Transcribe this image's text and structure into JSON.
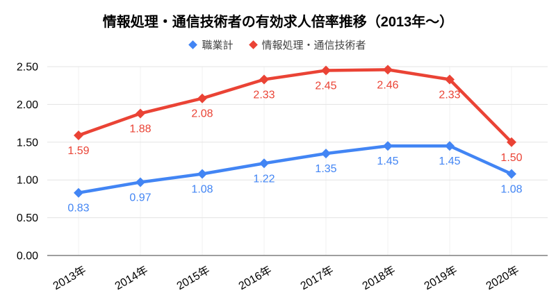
{
  "chart": {
    "title": "情報処理・通信技術者の有効求人倍率推移（2013年〜）",
    "background": "#ffffff",
    "grid_color": "#e3e3e3",
    "vgrid_color": "#f2f2f2",
    "baseline_color": "#9e9e9e",
    "axis_text_color": "#000000",
    "legend_text_color": "#424242"
  },
  "chart_data": {
    "type": "line",
    "title": "情報処理・通信技術者の有効求人倍率推移（2013年〜）",
    "categories": [
      "2013年",
      "2014年",
      "2015年",
      "2016年",
      "2017年",
      "2018年",
      "2019年",
      "2020年"
    ],
    "series": [
      {
        "name": "職業計",
        "color": "#4285f4",
        "values": [
          0.83,
          0.97,
          1.08,
          1.22,
          1.35,
          1.45,
          1.45,
          1.08
        ]
      },
      {
        "name": "情報処理・通信技術者",
        "color": "#ea4335",
        "values": [
          1.59,
          1.88,
          2.08,
          2.33,
          2.45,
          2.46,
          2.33,
          1.5
        ]
      }
    ],
    "xlabel": "",
    "ylabel": "",
    "ylim": [
      0,
      2.5
    ],
    "yticks": [
      0,
      0.5,
      1,
      1.5,
      2,
      2.5
    ],
    "ytick_labels": [
      "0.00",
      "0.50",
      "1.00",
      "1.50",
      "2.00",
      "2.50"
    ],
    "grid": true,
    "legend_position": "top",
    "marker": "diamond",
    "data_labels": true,
    "xtick_angle": -30
  }
}
